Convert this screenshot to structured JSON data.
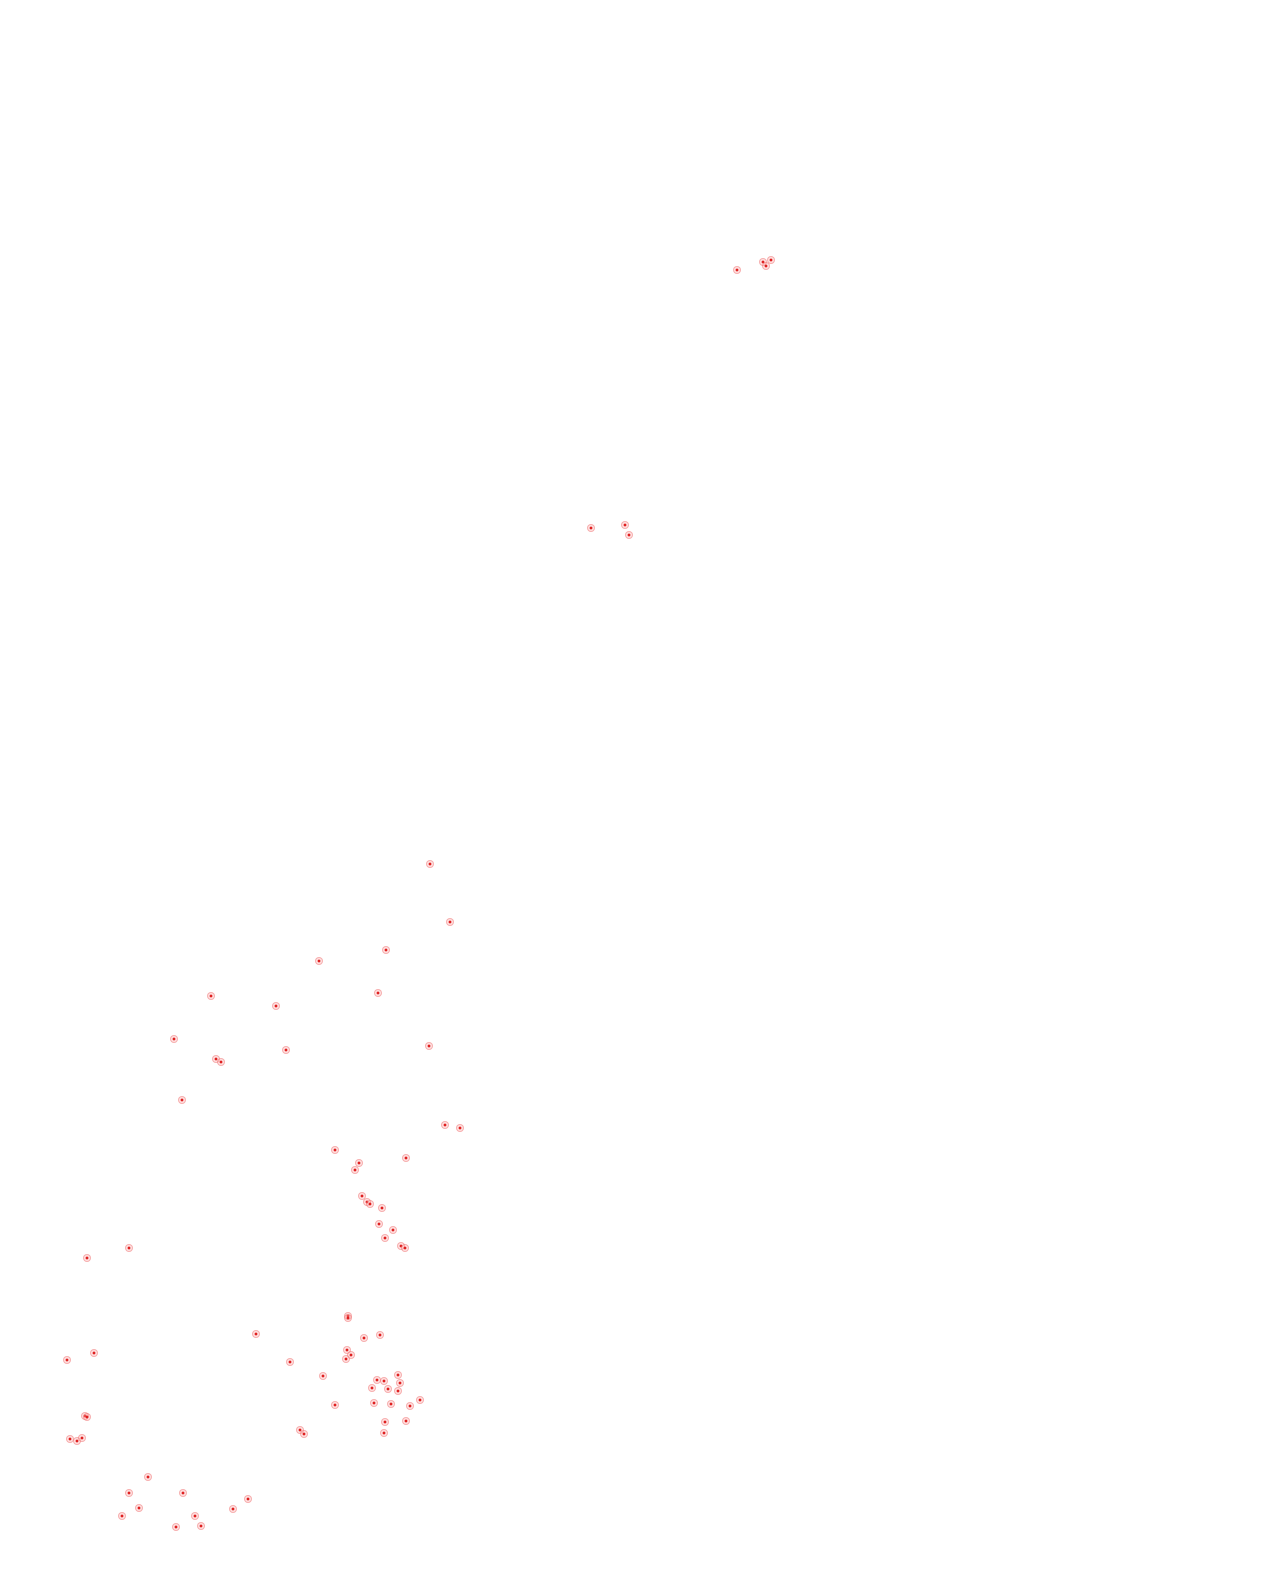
{
  "map": {
    "marker_color": "#dc1414",
    "background": "#ffffff"
  }
}
